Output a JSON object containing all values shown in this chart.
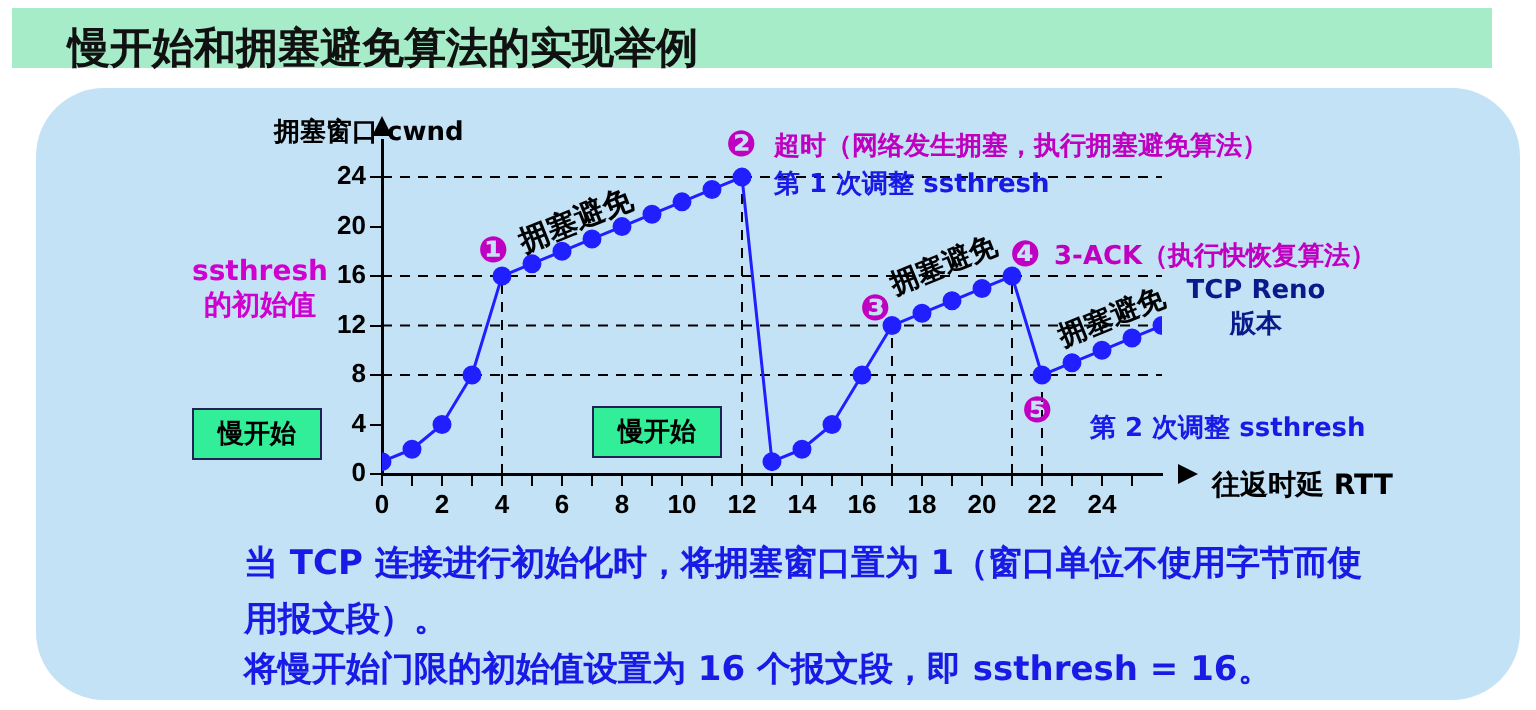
{
  "chart_data": {
    "type": "line",
    "title": "慢开始和拥塞避免算法的实现举例",
    "xlabel": "往返时延 RTT",
    "ylabel": "拥塞窗口 cwnd",
    "x": [
      0,
      1,
      2,
      3,
      4,
      5,
      6,
      7,
      8,
      9,
      10,
      11,
      12,
      13,
      14,
      15,
      16,
      17,
      18,
      19,
      20,
      21,
      22,
      23,
      24,
      25,
      26
    ],
    "series": [
      {
        "color": "#1f1fff",
        "values": [
          1,
          2,
          4,
          8,
          16,
          17,
          18,
          19,
          20,
          21,
          22,
          23,
          24,
          1,
          2,
          4,
          8,
          12,
          13,
          14,
          15,
          16,
          8,
          9,
          10,
          11,
          12
        ]
      }
    ],
    "xlim": [
      0,
      26
    ],
    "ylim": [
      0,
      27
    ],
    "xticks": [
      0,
      {
        "value": 1,
        "label": null
      },
      2,
      {
        "value": 3,
        "label": null
      },
      4,
      {
        "value": 5,
        "label": null
      },
      6,
      {
        "value": 7,
        "label": null
      },
      8,
      {
        "value": 9,
        "label": null
      },
      10,
      {
        "value": 11,
        "label": null
      },
      12,
      {
        "value": 13,
        "label": null
      },
      14,
      {
        "value": 15,
        "label": null
      },
      16,
      {
        "value": 17,
        "label": null
      },
      18,
      {
        "value": 19,
        "label": null
      },
      20,
      {
        "value": 21,
        "label": null
      },
      22,
      {
        "value": 23,
        "label": null
      },
      24,
      {
        "value": 25,
        "label": null
      }
    ],
    "yticks": [
      0,
      4,
      8,
      12,
      16,
      20,
      24
    ],
    "grid": false,
    "legend": false,
    "marker": "circle",
    "line_style": "solid",
    "ref_lines": [
      {
        "axis": "y",
        "value": 24,
        "color": "#000000",
        "line_style": "dashed"
      },
      {
        "axis": "y",
        "value": 16,
        "color": "#000000",
        "line_style": "dashed"
      },
      {
        "axis": "y",
        "value": 12,
        "color": "#000000",
        "line_style": "dashed"
      },
      {
        "axis": "y",
        "value": 8,
        "color": "#000000",
        "line_style": "dashed"
      },
      {
        "axis": "x",
        "value": 4,
        "color": "#000000",
        "line_style": "dashed"
      },
      {
        "axis": "x",
        "value": 12,
        "color": "#000000",
        "line_style": "dashed"
      },
      {
        "axis": "x",
        "value": 17,
        "color": "#000000",
        "line_style": "dashed"
      },
      {
        "axis": "x",
        "value": 21,
        "color": "#000000",
        "line_style": "dashed"
      },
      {
        "axis": "x",
        "value": 22,
        "color": "#000000",
        "line_style": "dashed"
      }
    ],
    "annotations": [
      "❶",
      "拥塞避免",
      "❷",
      "超时（网络发生拥塞，执行拥塞避免算法）",
      "第 1 次调整 ssthresh",
      "❸",
      "拥塞避免",
      "❹",
      "3-ACK（执行快恢复算法）",
      "拥塞避免",
      "❺",
      "第 2 次调整 ssthresh",
      "ssthresh 的初始值",
      "慢开始",
      "慢开始",
      "TCP Reno 版本",
      "当 TCP 连接进行初始化时，将拥塞窗口置为 1（窗口单位不使用字节而使用报文段）。",
      "将慢开始门限的初始值设置为 16 个报文段，即 ssthresh = 16。"
    ]
  }
}
